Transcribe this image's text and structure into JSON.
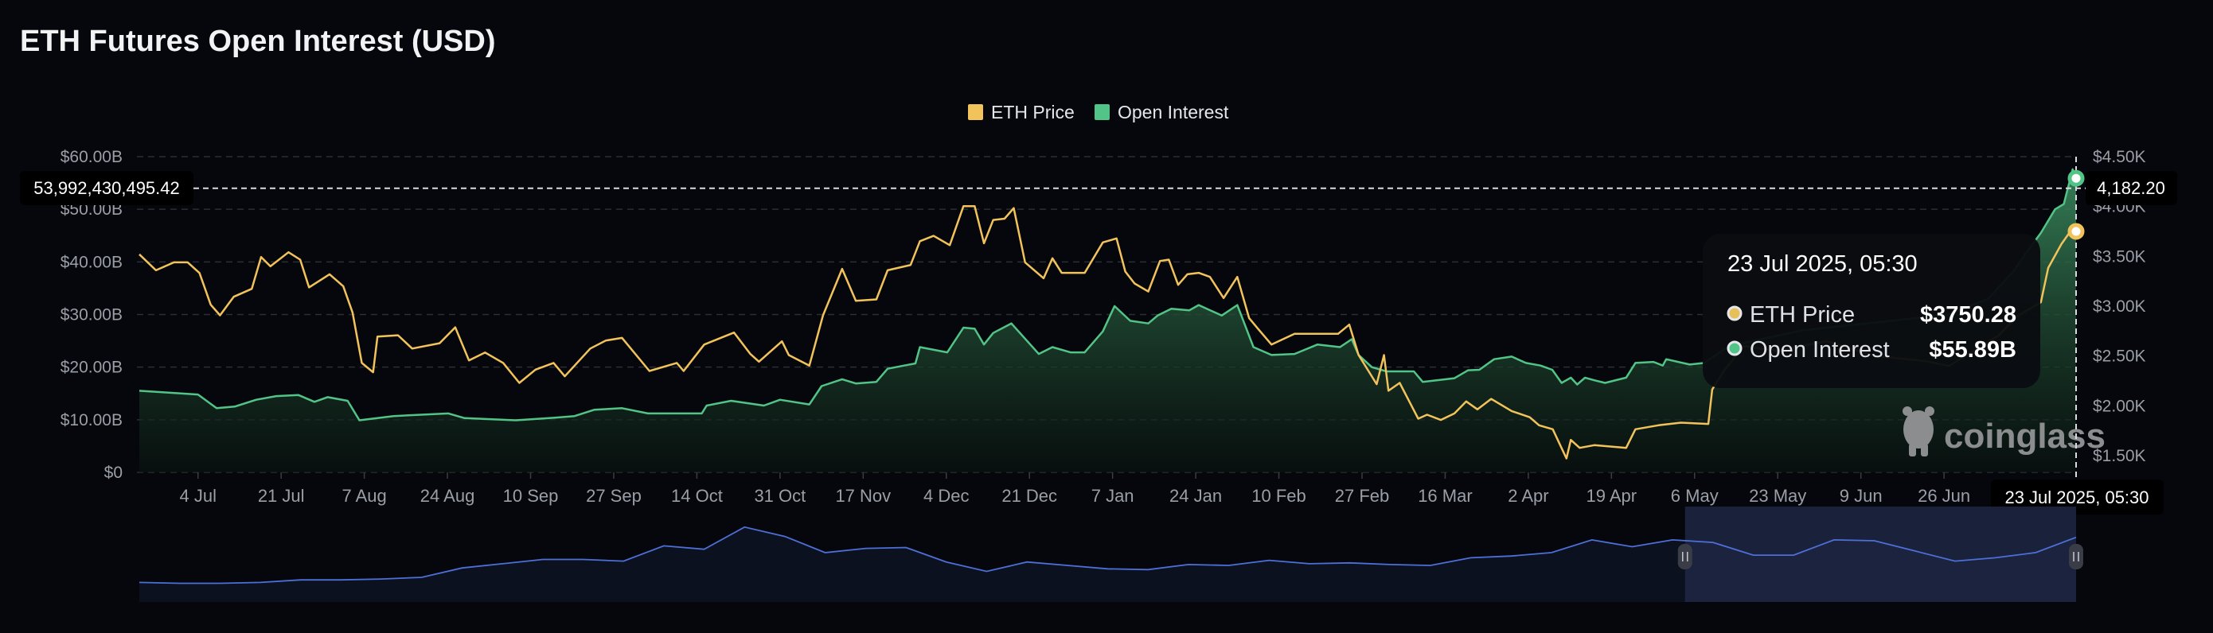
{
  "title": "ETH Futures Open Interest (USD)",
  "colors": {
    "price": "#f2c35b",
    "oi": "#52c487",
    "navigator": "#4d6fd8",
    "background": "#05070c"
  },
  "watermark": "coinglass",
  "chart_data": {
    "type": "line",
    "title": "ETH Futures Open Interest (USD)",
    "x_start_date": "22 Jun 2024",
    "x_unit": "days since start",
    "x_range": [
      0,
      396
    ],
    "legend": {
      "placement": "top-center",
      "entries": [
        "ETH Price",
        "Open Interest"
      ]
    },
    "x_tick_labels": [
      "4 Jul",
      "21 Jul",
      "7 Aug",
      "24 Aug",
      "10 Sep",
      "27 Sep",
      "14 Oct",
      "31 Oct",
      "17 Nov",
      "4 Dec",
      "21 Dec",
      "7 Jan",
      "24 Jan",
      "10 Feb",
      "27 Feb",
      "16 Mar",
      "2 Apr",
      "19 Apr",
      "6 May",
      "23 May",
      "9 Jun",
      "26 Jun"
    ],
    "x_tick_first_day": 12,
    "x_tick_step_days": 17,
    "y_left": {
      "label": "Open Interest (USD)",
      "ticks": [
        "$0",
        "$10.00B",
        "$20.00B",
        "$30.00B",
        "$40.00B",
        "$50.00B",
        "$60.00B"
      ],
      "range": [
        0,
        60
      ],
      "unit": "B USD"
    },
    "y_right": {
      "label": "ETH Price",
      "ticks": [
        "$1.50K",
        "$2.00K",
        "$2.50K",
        "$3.00K",
        "$3.50K",
        "$4.00K",
        "$4.50K"
      ],
      "tick_values": [
        1500,
        2000,
        2500,
        3000,
        3500,
        4000,
        4500
      ],
      "range": [
        1330,
        4500
      ]
    },
    "grid": true,
    "series": [
      {
        "name": "ETH Price",
        "axis": "right",
        "points": [
          [
            0,
            3520
          ],
          [
            3.4,
            3360
          ],
          [
            7.1,
            3440
          ],
          [
            9.9,
            3440
          ],
          [
            12.3,
            3333
          ],
          [
            14.6,
            3014
          ],
          [
            16.5,
            2908
          ],
          [
            19.3,
            3094
          ],
          [
            23,
            3174
          ],
          [
            24.9,
            3493
          ],
          [
            26.8,
            3400
          ],
          [
            30.5,
            3541
          ],
          [
            32.9,
            3467
          ],
          [
            34.7,
            3188
          ],
          [
            38.9,
            3320
          ],
          [
            41.7,
            3200
          ],
          [
            43.6,
            2935
          ],
          [
            45.5,
            2430
          ],
          [
            47.8,
            2337
          ],
          [
            48.7,
            2695
          ],
          [
            52.9,
            2708
          ],
          [
            55.8,
            2575
          ],
          [
            61.4,
            2628
          ],
          [
            64.6,
            2788
          ],
          [
            67.4,
            2456
          ],
          [
            70.7,
            2535
          ],
          [
            74.4,
            2430
          ],
          [
            77.7,
            2230
          ],
          [
            81,
            2363
          ],
          [
            84.7,
            2430
          ],
          [
            87,
            2296
          ],
          [
            92.2,
            2575
          ],
          [
            95.4,
            2655
          ],
          [
            98.7,
            2682
          ],
          [
            104.3,
            2350
          ],
          [
            109.9,
            2430
          ],
          [
            111.3,
            2350
          ],
          [
            115.5,
            2615
          ],
          [
            121.6,
            2735
          ],
          [
            124.9,
            2522
          ],
          [
            126.7,
            2443
          ],
          [
            131.4,
            2647
          ],
          [
            132.8,
            2509
          ],
          [
            137,
            2403
          ],
          [
            139.8,
            2908
          ],
          [
            141.8,
            3147
          ],
          [
            143.7,
            3374
          ],
          [
            146.5,
            3054
          ],
          [
            150.7,
            3068
          ],
          [
            153,
            3360
          ],
          [
            157.7,
            3413
          ],
          [
            159.6,
            3652
          ],
          [
            162.4,
            3705
          ],
          [
            165.7,
            3612
          ],
          [
            168.5,
            4003
          ],
          [
            170.8,
            4003
          ],
          [
            172.7,
            3631
          ],
          [
            174.6,
            3865
          ],
          [
            176.9,
            3878
          ],
          [
            178.8,
            3984
          ],
          [
            181.1,
            3440
          ],
          [
            184.9,
            3280
          ],
          [
            186.7,
            3480
          ],
          [
            188.6,
            3334
          ],
          [
            193.3,
            3334
          ],
          [
            197,
            3640
          ],
          [
            199.8,
            3680
          ],
          [
            201.6,
            3347
          ],
          [
            203.5,
            3227
          ],
          [
            206.3,
            3147
          ],
          [
            208.7,
            3453
          ],
          [
            210.5,
            3467
          ],
          [
            212.4,
            3214
          ],
          [
            214.3,
            3320
          ],
          [
            216.6,
            3334
          ],
          [
            218.9,
            3294
          ],
          [
            221.7,
            3081
          ],
          [
            224.5,
            3294
          ],
          [
            226.9,
            2881
          ],
          [
            228.7,
            2775
          ],
          [
            231.5,
            2615
          ],
          [
            236.2,
            2722
          ],
          [
            240.9,
            2722
          ],
          [
            245.1,
            2722
          ],
          [
            247.4,
            2815
          ],
          [
            249.3,
            2509
          ],
          [
            253,
            2217
          ],
          [
            254.5,
            2509
          ],
          [
            255.4,
            2151
          ],
          [
            257.7,
            2230
          ],
          [
            261.5,
            1871
          ],
          [
            263.3,
            1911
          ],
          [
            266.1,
            1858
          ],
          [
            268.9,
            1924
          ],
          [
            271.3,
            2044
          ],
          [
            273.6,
            1964
          ],
          [
            276.4,
            2070
          ],
          [
            280.6,
            1948
          ],
          [
            284.3,
            1885
          ],
          [
            286.2,
            1805
          ],
          [
            289,
            1765
          ],
          [
            291.8,
            1472
          ],
          [
            292.7,
            1658
          ],
          [
            294.5,
            1578
          ],
          [
            297.5,
            1605
          ],
          [
            304,
            1578
          ],
          [
            305.9,
            1765
          ],
          [
            310.6,
            1805
          ],
          [
            315.2,
            1831
          ],
          [
            320.8,
            1818
          ],
          [
            321.6,
            2164
          ],
          [
            324,
            2350
          ],
          [
            328,
            2600
          ],
          [
            335,
            2550
          ],
          [
            345,
            2650
          ],
          [
            355,
            2500
          ],
          [
            365,
            2450
          ],
          [
            370,
            2400
          ],
          [
            375,
            2550
          ],
          [
            380,
            2700
          ],
          [
            384,
            2900
          ],
          [
            388.8,
            3040
          ],
          [
            390.3,
            3384
          ],
          [
            393,
            3623
          ],
          [
            394.6,
            3734
          ],
          [
            396,
            3750.28
          ]
        ]
      },
      {
        "name": "Open Interest",
        "axis": "left",
        "points": [
          [
            0,
            15.5
          ],
          [
            12,
            14.8
          ],
          [
            15.8,
            12.2
          ],
          [
            19.5,
            12.5
          ],
          [
            23.9,
            13.8
          ],
          [
            28,
            14.5
          ],
          [
            32.5,
            14.7
          ],
          [
            35.8,
            13.4
          ],
          [
            38.5,
            14.3
          ],
          [
            42.6,
            13.6
          ],
          [
            45,
            9.9
          ],
          [
            52,
            10.7
          ],
          [
            63.2,
            11.2
          ],
          [
            66.5,
            10.3
          ],
          [
            77,
            9.9
          ],
          [
            85,
            10.4
          ],
          [
            89,
            10.7
          ],
          [
            93,
            11.9
          ],
          [
            98.7,
            12.2
          ],
          [
            104,
            11.2
          ],
          [
            115,
            11.2
          ],
          [
            116,
            12.7
          ],
          [
            121,
            13.6
          ],
          [
            127.7,
            12.7
          ],
          [
            131,
            13.8
          ],
          [
            137,
            12.9
          ],
          [
            139.5,
            16.4
          ],
          [
            143.7,
            17.7
          ],
          [
            146.5,
            16.9
          ],
          [
            150.7,
            17.2
          ],
          [
            153,
            19.7
          ],
          [
            158.7,
            20.7
          ],
          [
            159.6,
            23.8
          ],
          [
            165.2,
            22.8
          ],
          [
            168.5,
            27.5
          ],
          [
            170.8,
            27.3
          ],
          [
            172.7,
            24.3
          ],
          [
            174.6,
            26.5
          ],
          [
            178.3,
            28.3
          ],
          [
            183.9,
            22.5
          ],
          [
            186.7,
            23.8
          ],
          [
            190.4,
            22.8
          ],
          [
            193.3,
            22.8
          ],
          [
            197,
            26.8
          ],
          [
            199.4,
            31.6
          ],
          [
            202.6,
            28.8
          ],
          [
            206.3,
            28.3
          ],
          [
            208.2,
            29.8
          ],
          [
            211,
            31.1
          ],
          [
            214.7,
            30.8
          ],
          [
            216.6,
            31.8
          ],
          [
            221.3,
            29.8
          ],
          [
            224.5,
            31.8
          ],
          [
            227.8,
            23.8
          ],
          [
            231.5,
            22.3
          ],
          [
            236.2,
            22.5
          ],
          [
            240.9,
            24.3
          ],
          [
            245.5,
            23.8
          ],
          [
            247.9,
            25.3
          ],
          [
            249.3,
            22.3
          ],
          [
            252,
            20.0
          ],
          [
            255,
            19.2
          ],
          [
            260.6,
            19.2
          ],
          [
            262.4,
            17.2
          ],
          [
            268.9,
            17.9
          ],
          [
            271.7,
            19.4
          ],
          [
            274,
            19.5
          ],
          [
            277,
            21.5
          ],
          [
            280.6,
            22.0
          ],
          [
            283.5,
            20.8
          ],
          [
            286.5,
            20.3
          ],
          [
            288.9,
            19.5
          ],
          [
            290.8,
            17.0
          ],
          [
            292.7,
            18.0
          ],
          [
            294,
            16.7
          ],
          [
            295.6,
            18.0
          ],
          [
            297.5,
            17.5
          ],
          [
            299.7,
            17.0
          ],
          [
            304,
            18.0
          ],
          [
            305.9,
            20.8
          ],
          [
            309.6,
            21.0
          ],
          [
            311.5,
            20.3
          ],
          [
            312.2,
            21.5
          ],
          [
            317,
            20.5
          ],
          [
            320,
            20.8
          ],
          [
            325,
            24
          ],
          [
            330,
            25
          ],
          [
            340,
            27
          ],
          [
            350,
            28
          ],
          [
            360,
            29
          ],
          [
            370,
            30
          ],
          [
            378,
            33
          ],
          [
            383,
            38
          ],
          [
            386,
            42
          ],
          [
            388.8,
            45.5
          ],
          [
            391.7,
            50
          ],
          [
            393.5,
            51
          ],
          [
            395.3,
            57.6
          ],
          [
            396,
            55.89
          ]
        ]
      }
    ],
    "navigator": {
      "unit": "relative level 0-100",
      "values": [
        23,
        22,
        22,
        23,
        26,
        26,
        27,
        29,
        40,
        45,
        50,
        50,
        48,
        66,
        62,
        88,
        77,
        58,
        63,
        64,
        47,
        36,
        47,
        43,
        39,
        38,
        44,
        43,
        49,
        45,
        46,
        44,
        43,
        52,
        54,
        58,
        73,
        65,
        73,
        70,
        55,
        55,
        73,
        72,
        60,
        48,
        52,
        58,
        76
      ],
      "selection_day_range": [
        318,
        396
      ]
    },
    "crosshair": {
      "date_label": "23 Jul 2025, 05:30",
      "left_value_label": "53,992,430,495.42",
      "left_value": 53.99243049542,
      "right_value_label": "4,182.20",
      "day": 396
    },
    "tooltip": {
      "date": "23 Jul 2025, 05:30",
      "rows": [
        {
          "label": "ETH Price",
          "value": "$3750.28"
        },
        {
          "label": "Open Interest",
          "value": "$55.89B"
        }
      ]
    }
  }
}
